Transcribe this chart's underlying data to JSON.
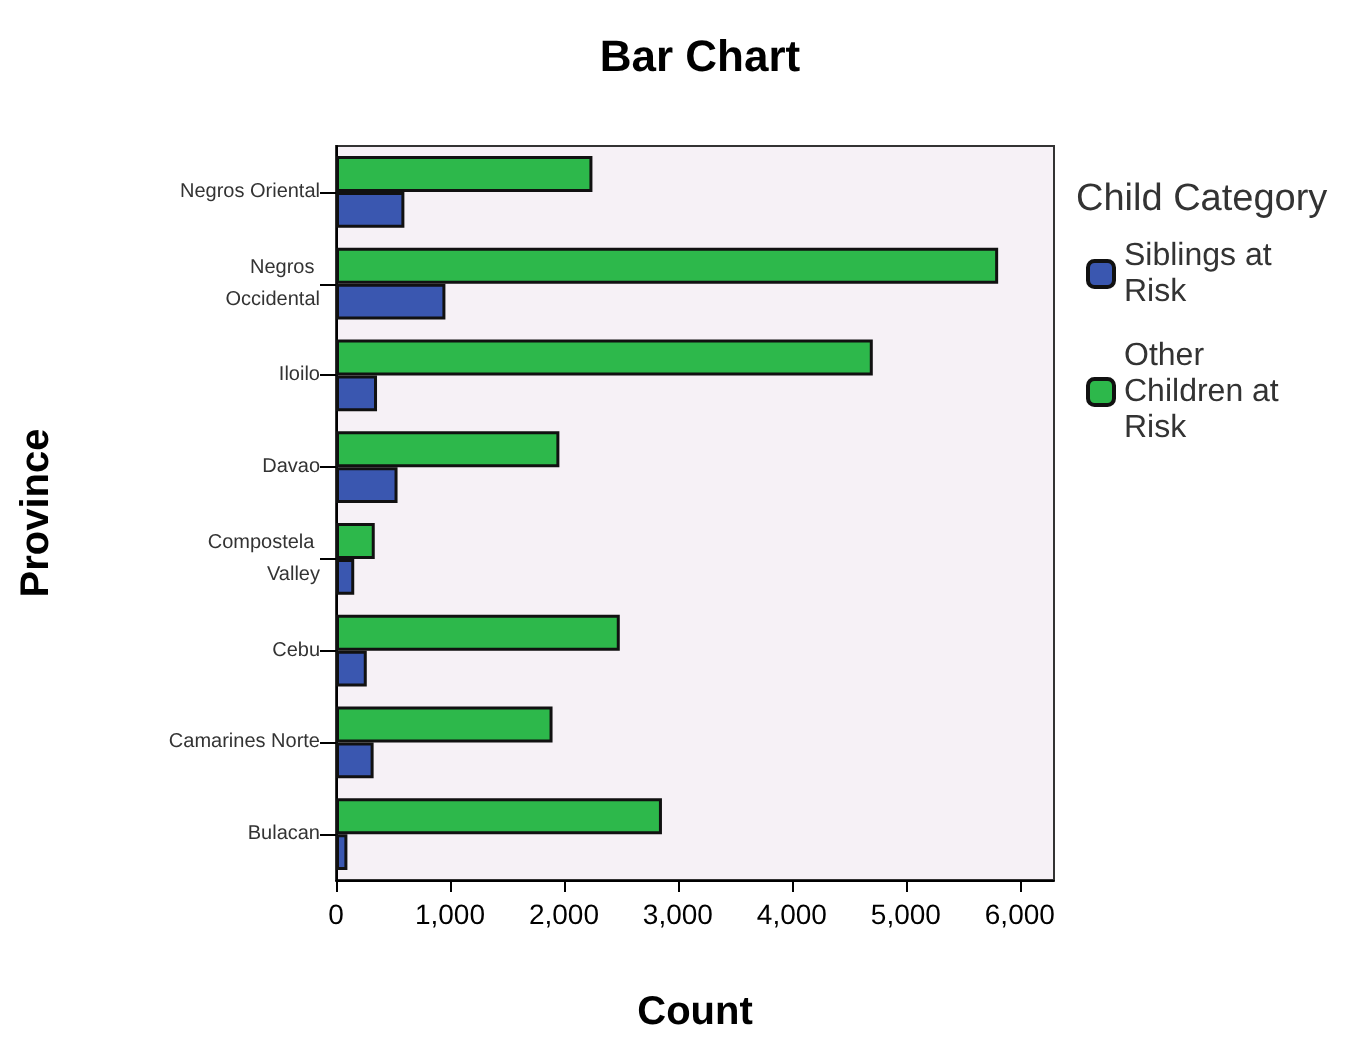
{
  "chart_data": {
    "type": "bar",
    "orientation": "horizontal",
    "title": "Bar Chart",
    "xlabel": "Count",
    "ylabel": "Province",
    "legend_title": "Child Category",
    "legend": "right",
    "categories": [
      "Negros Oriental",
      "Negros Occidental",
      "Iloilo",
      "Davao",
      "Compostela Valley",
      "Cebu",
      "Camarines Norte",
      "Bulacan"
    ],
    "series": [
      {
        "name": "Siblings at Risk",
        "color": "#3a57b0",
        "values": [
          600,
          960,
          360,
          540,
          160,
          270,
          330,
          100
        ]
      },
      {
        "name": "Other Children at Risk",
        "color": "#2db84b",
        "values": [
          2250,
          5810,
          4710,
          1960,
          340,
          2490,
          1900,
          2860
        ]
      }
    ],
    "xlim": [
      0,
      6300
    ],
    "xticks": [
      {
        "value": 0,
        "label": "0"
      },
      {
        "value": 1000,
        "label": "1,000"
      },
      {
        "value": 2000,
        "label": "2,000"
      },
      {
        "value": 3000,
        "label": "3,000"
      },
      {
        "value": 4000,
        "label": "4,000"
      },
      {
        "value": 5000,
        "label": "5,000"
      },
      {
        "value": 6000,
        "label": "6,000"
      }
    ],
    "grid": false
  }
}
